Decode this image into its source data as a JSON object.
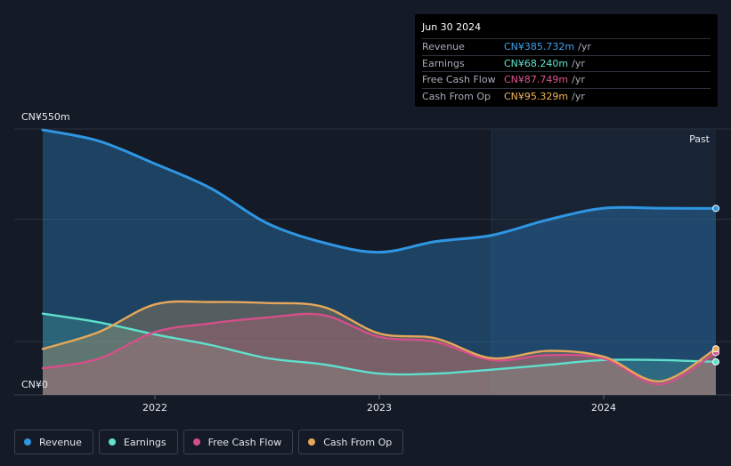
{
  "colors": {
    "revenue": "#2e96e3",
    "earnings": "#5fe0cd",
    "free_cash_flow": "#d44f8a",
    "cash_from_op": "#e6a75a",
    "background": "#151b26"
  },
  "tooltip": {
    "date": "Jun 30 2024",
    "rows": [
      {
        "label": "Revenue",
        "value": "CN¥385.732m",
        "unit": "/yr",
        "color": "#3ea3ef"
      },
      {
        "label": "Earnings",
        "value": "CN¥68.240m",
        "unit": "/yr",
        "color": "#5fe0cd"
      },
      {
        "label": "Free Cash Flow",
        "value": "CN¥87.749m",
        "unit": "/yr",
        "color": "#e0548f"
      },
      {
        "label": "Cash From Op",
        "value": "CN¥95.329m",
        "unit": "/yr",
        "color": "#efb35c"
      }
    ]
  },
  "legend": [
    {
      "label": "Revenue",
      "color": "#2e96e3"
    },
    {
      "label": "Earnings",
      "color": "#5fe0cd"
    },
    {
      "label": "Free Cash Flow",
      "color": "#d44f8a"
    },
    {
      "label": "Cash From Op",
      "color": "#e6a75a"
    }
  ],
  "chart_data": {
    "type": "area",
    "ylim": [
      0,
      550
    ],
    "y_unit": "CN¥ m",
    "y_tick_labels": {
      "top": "CN¥550m",
      "bottom": "CN¥0"
    },
    "x_ticks": [
      2022,
      2023,
      2024
    ],
    "xlim": [
      2021.5,
      2024.5
    ],
    "past_label": "Past",
    "past_region_start": 2023.5,
    "series": [
      {
        "name": "Revenue",
        "key": "revenue",
        "x": [
          2021.5,
          2021.75,
          2022.0,
          2022.25,
          2022.5,
          2022.75,
          2023.0,
          2023.25,
          2023.5,
          2023.75,
          2024.0,
          2024.25,
          2024.5
        ],
        "y": [
          548,
          525,
          478,
          427,
          355,
          315,
          295,
          317,
          330,
          362,
          386,
          386,
          385.7
        ]
      },
      {
        "name": "Earnings",
        "key": "earnings",
        "x": [
          2021.5,
          2021.75,
          2022.0,
          2022.25,
          2022.5,
          2022.75,
          2023.0,
          2023.25,
          2023.5,
          2023.75,
          2024.0,
          2024.25,
          2024.5
        ],
        "y": [
          168,
          150,
          125,
          103,
          76,
          63,
          44,
          44,
          52,
          62,
          72,
          72,
          68.2
        ]
      },
      {
        "name": "Free Cash Flow",
        "key": "free_cash_flow",
        "x": [
          2021.5,
          2021.75,
          2022.0,
          2022.25,
          2022.5,
          2022.75,
          2023.0,
          2023.25,
          2023.5,
          2023.75,
          2024.0,
          2024.25,
          2024.5
        ],
        "y": [
          55,
          75,
          130,
          148,
          160,
          165,
          120,
          110,
          72,
          82,
          75,
          22,
          87.7
        ]
      },
      {
        "name": "Cash From Op",
        "key": "cash_from_op",
        "x": [
          2021.5,
          2021.75,
          2022.0,
          2022.25,
          2022.5,
          2022.75,
          2023.0,
          2023.25,
          2023.5,
          2023.75,
          2024.0,
          2024.25,
          2024.5
        ],
        "y": [
          95,
          130,
          187,
          192,
          190,
          182,
          127,
          117,
          76,
          91,
          79,
          28,
          95.3
        ]
      }
    ]
  }
}
